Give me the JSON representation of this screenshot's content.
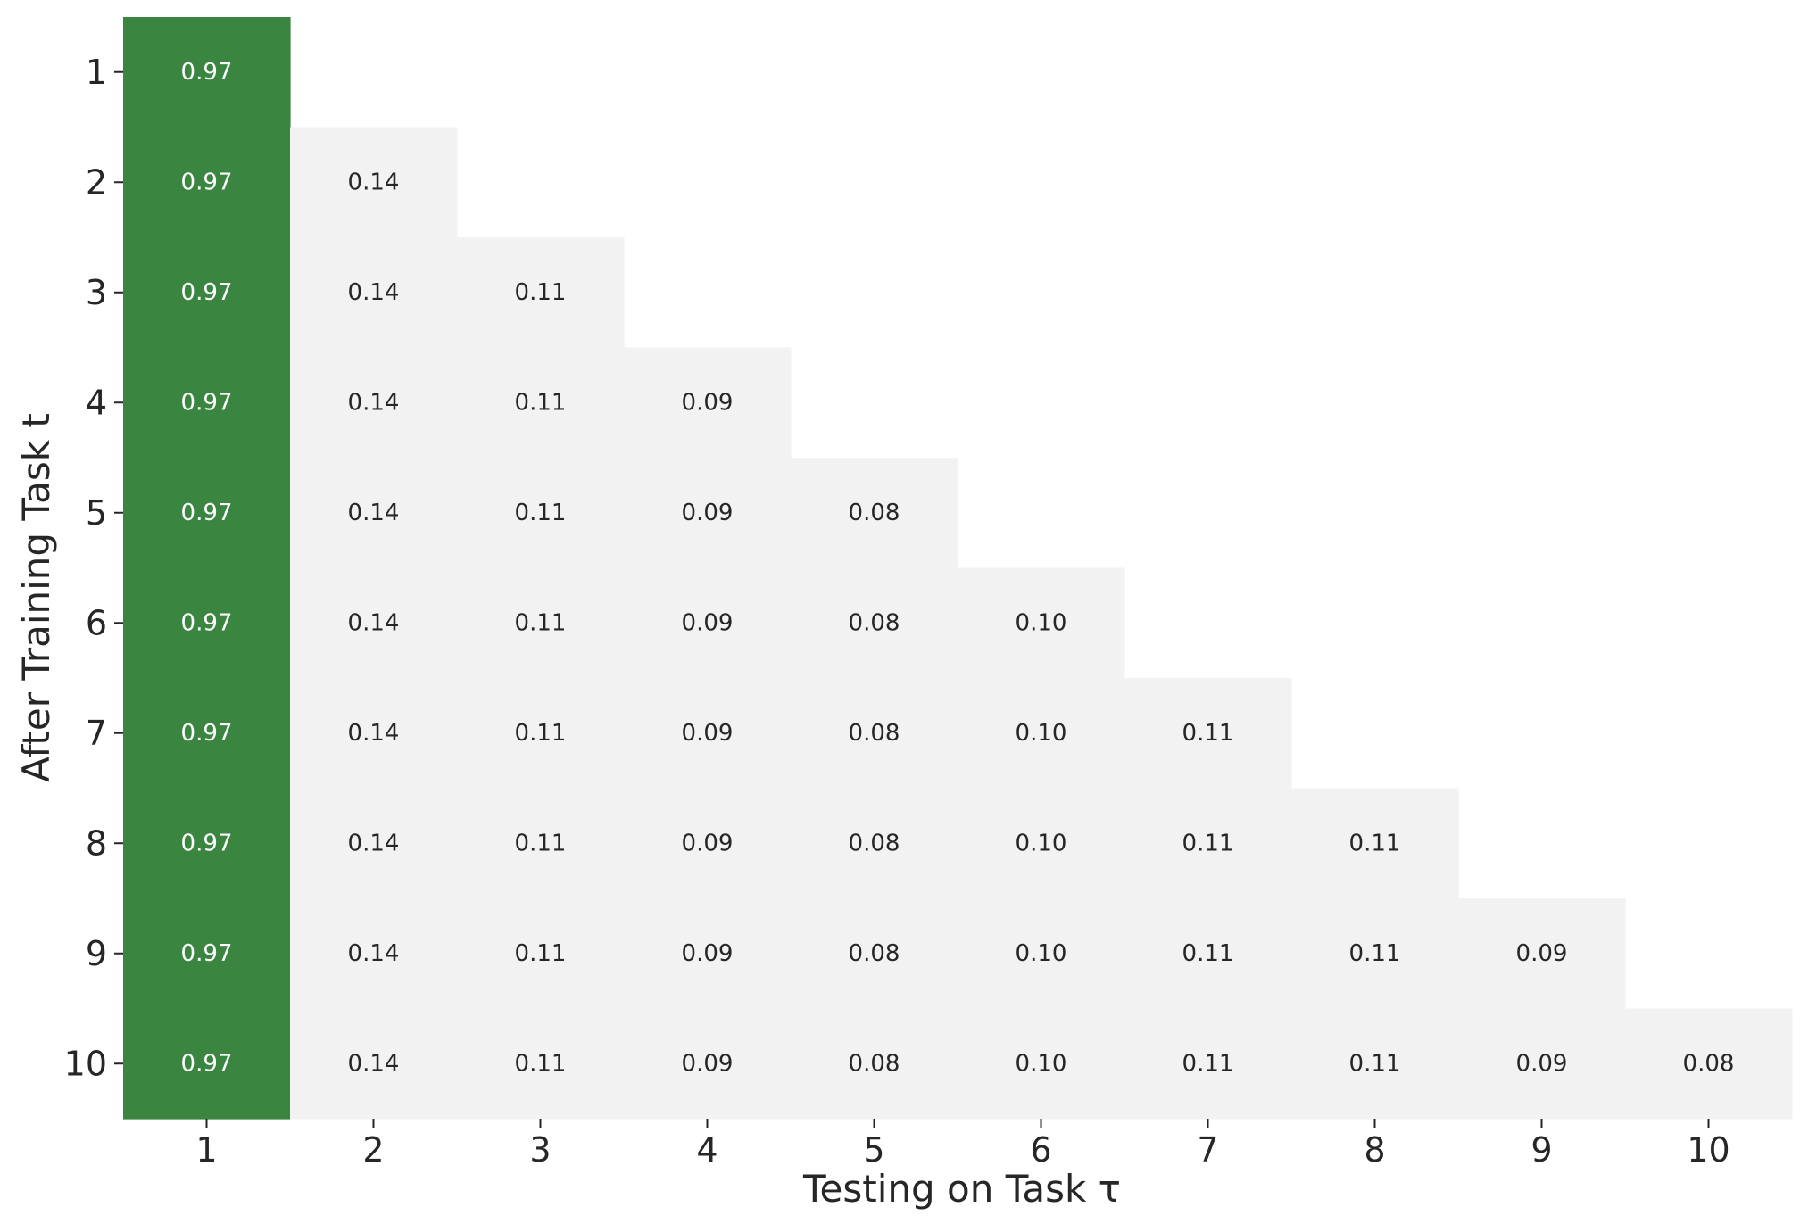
{
  "chart_data": {
    "type": "heatmap",
    "xlabel": "Testing on Task τ",
    "ylabel": "After Training Task t",
    "x_categories": [
      "1",
      "2",
      "3",
      "4",
      "5",
      "6",
      "7",
      "8",
      "9",
      "10"
    ],
    "y_categories": [
      "1",
      "2",
      "3",
      "4",
      "5",
      "6",
      "7",
      "8",
      "9",
      "10"
    ],
    "values": [
      [
        0.97,
        null,
        null,
        null,
        null,
        null,
        null,
        null,
        null,
        null
      ],
      [
        0.97,
        0.14,
        null,
        null,
        null,
        null,
        null,
        null,
        null,
        null
      ],
      [
        0.97,
        0.14,
        0.11,
        null,
        null,
        null,
        null,
        null,
        null,
        null
      ],
      [
        0.97,
        0.14,
        0.11,
        0.09,
        null,
        null,
        null,
        null,
        null,
        null
      ],
      [
        0.97,
        0.14,
        0.11,
        0.09,
        0.08,
        null,
        null,
        null,
        null,
        null
      ],
      [
        0.97,
        0.14,
        0.11,
        0.09,
        0.08,
        0.1,
        null,
        null,
        null,
        null
      ],
      [
        0.97,
        0.14,
        0.11,
        0.09,
        0.08,
        0.1,
        0.11,
        null,
        null,
        null
      ],
      [
        0.97,
        0.14,
        0.11,
        0.09,
        0.08,
        0.1,
        0.11,
        0.11,
        null,
        null
      ],
      [
        0.97,
        0.14,
        0.11,
        0.09,
        0.08,
        0.1,
        0.11,
        0.11,
        0.09,
        null
      ],
      [
        0.97,
        0.14,
        0.11,
        0.09,
        0.08,
        0.1,
        0.11,
        0.11,
        0.09,
        0.08
      ]
    ],
    "labels": [
      [
        "0.97",
        null,
        null,
        null,
        null,
        null,
        null,
        null,
        null,
        null
      ],
      [
        "0.97",
        "0.14",
        null,
        null,
        null,
        null,
        null,
        null,
        null,
        null
      ],
      [
        "0.97",
        "0.14",
        "0.11",
        null,
        null,
        null,
        null,
        null,
        null,
        null
      ],
      [
        "0.97",
        "0.14",
        "0.11",
        "0.09",
        null,
        null,
        null,
        null,
        null,
        null
      ],
      [
        "0.97",
        "0.14",
        "0.11",
        "0.09",
        "0.08",
        null,
        null,
        null,
        null,
        null
      ],
      [
        "0.97",
        "0.14",
        "0.11",
        "0.09",
        "0.08",
        "0.10",
        null,
        null,
        null,
        null
      ],
      [
        "0.97",
        "0.14",
        "0.11",
        "0.09",
        "0.08",
        "0.10",
        "0.11",
        null,
        null,
        null
      ],
      [
        "0.97",
        "0.14",
        "0.11",
        "0.09",
        "0.08",
        "0.10",
        "0.11",
        "0.11",
        null,
        null
      ],
      [
        "0.97",
        "0.14",
        "0.11",
        "0.09",
        "0.08",
        "0.10",
        "0.11",
        "0.11",
        "0.09",
        null
      ],
      [
        "0.97",
        "0.14",
        "0.11",
        "0.09",
        "0.08",
        "0.10",
        "0.11",
        "0.11",
        "0.09",
        "0.08"
      ]
    ],
    "colors": {
      "high": "#3a8540",
      "low": "#f2f2f2",
      "high_text": "#ffffff",
      "low_text": "#262626",
      "axis_text": "#262626"
    },
    "grid": false,
    "colorbar": false
  }
}
